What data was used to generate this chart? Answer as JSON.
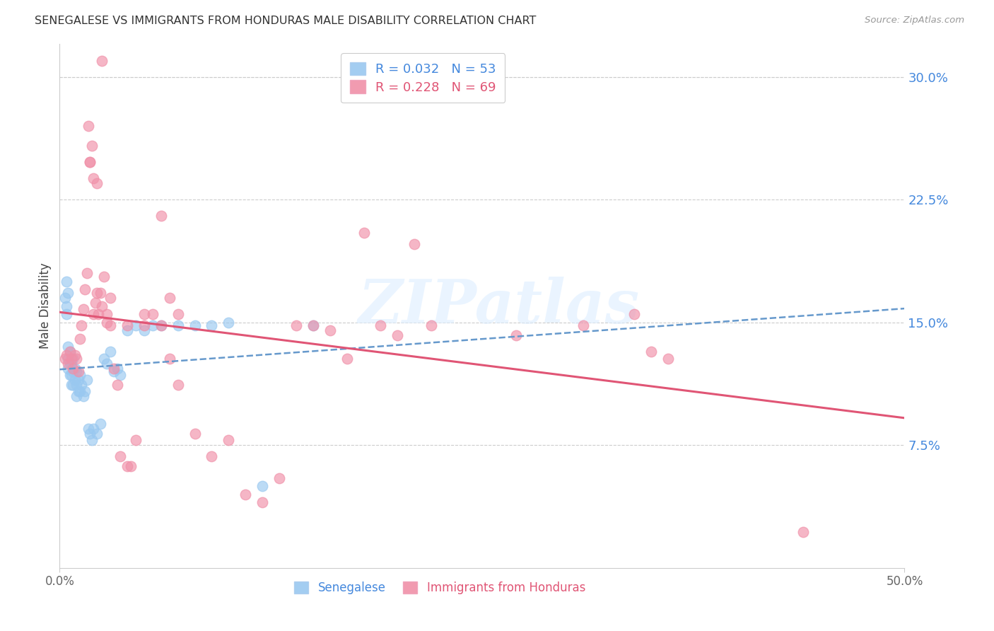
{
  "title": "SENEGALESE VS IMMIGRANTS FROM HONDURAS MALE DISABILITY CORRELATION CHART",
  "source": "Source: ZipAtlas.com",
  "ylabel": "Male Disability",
  "right_yticks": [
    "30.0%",
    "22.5%",
    "15.0%",
    "7.5%"
  ],
  "right_ytick_vals": [
    0.3,
    0.225,
    0.15,
    0.075
  ],
  "xlim": [
    0.0,
    0.5
  ],
  "ylim": [
    0.0,
    0.32
  ],
  "legend_label1": "Senegalese",
  "legend_label2": "Immigrants from Honduras",
  "watermark_text": "ZIPatlas",
  "sen_color": "#99c8f0",
  "hon_color": "#f090a8",
  "sen_line_color": "#6699cc",
  "hon_line_color": "#e05575",
  "background_color": "#ffffff",
  "grid_color": "#cccccc",
  "sen_R": "0.032",
  "sen_N": "53",
  "hon_R": "0.228",
  "hon_N": "69",
  "senegalese_x": [
    0.003,
    0.004,
    0.004,
    0.005,
    0.005,
    0.005,
    0.006,
    0.006,
    0.006,
    0.007,
    0.007,
    0.007,
    0.008,
    0.008,
    0.008,
    0.009,
    0.009,
    0.01,
    0.01,
    0.01,
    0.011,
    0.011,
    0.012,
    0.012,
    0.013,
    0.014,
    0.015,
    0.016,
    0.017,
    0.018,
    0.019,
    0.02,
    0.022,
    0.024,
    0.026,
    0.028,
    0.03,
    0.032,
    0.034,
    0.036,
    0.04,
    0.045,
    0.05,
    0.055,
    0.06,
    0.07,
    0.08,
    0.09,
    0.1,
    0.12,
    0.15,
    0.004,
    0.005
  ],
  "senegalese_y": [
    0.165,
    0.155,
    0.16,
    0.135,
    0.128,
    0.122,
    0.132,
    0.125,
    0.118,
    0.125,
    0.118,
    0.112,
    0.128,
    0.12,
    0.112,
    0.122,
    0.115,
    0.12,
    0.112,
    0.105,
    0.115,
    0.108,
    0.118,
    0.108,
    0.112,
    0.105,
    0.108,
    0.115,
    0.085,
    0.082,
    0.078,
    0.085,
    0.082,
    0.088,
    0.128,
    0.125,
    0.132,
    0.12,
    0.122,
    0.118,
    0.145,
    0.148,
    0.145,
    0.148,
    0.148,
    0.148,
    0.148,
    0.148,
    0.15,
    0.05,
    0.148,
    0.175,
    0.168
  ],
  "honduras_x": [
    0.003,
    0.004,
    0.005,
    0.006,
    0.007,
    0.008,
    0.009,
    0.01,
    0.011,
    0.012,
    0.013,
    0.014,
    0.015,
    0.016,
    0.017,
    0.018,
    0.019,
    0.02,
    0.021,
    0.022,
    0.023,
    0.024,
    0.025,
    0.026,
    0.028,
    0.03,
    0.032,
    0.034,
    0.036,
    0.04,
    0.042,
    0.045,
    0.05,
    0.055,
    0.06,
    0.065,
    0.07,
    0.08,
    0.09,
    0.1,
    0.11,
    0.12,
    0.13,
    0.14,
    0.15,
    0.16,
    0.17,
    0.18,
    0.19,
    0.2,
    0.21,
    0.22,
    0.27,
    0.31,
    0.34,
    0.35,
    0.36,
    0.04,
    0.05,
    0.07,
    0.065,
    0.025,
    0.018,
    0.02,
    0.022,
    0.028,
    0.03,
    0.44,
    0.06
  ],
  "honduras_y": [
    0.128,
    0.13,
    0.125,
    0.132,
    0.128,
    0.122,
    0.13,
    0.128,
    0.12,
    0.14,
    0.148,
    0.158,
    0.17,
    0.18,
    0.27,
    0.248,
    0.258,
    0.155,
    0.162,
    0.168,
    0.155,
    0.168,
    0.16,
    0.178,
    0.15,
    0.148,
    0.122,
    0.112,
    0.068,
    0.062,
    0.062,
    0.078,
    0.148,
    0.155,
    0.148,
    0.128,
    0.112,
    0.082,
    0.068,
    0.078,
    0.045,
    0.04,
    0.055,
    0.148,
    0.148,
    0.145,
    0.128,
    0.205,
    0.148,
    0.142,
    0.198,
    0.148,
    0.142,
    0.148,
    0.155,
    0.132,
    0.128,
    0.148,
    0.155,
    0.155,
    0.165,
    0.31,
    0.248,
    0.238,
    0.235,
    0.155,
    0.165,
    0.022,
    0.215
  ]
}
